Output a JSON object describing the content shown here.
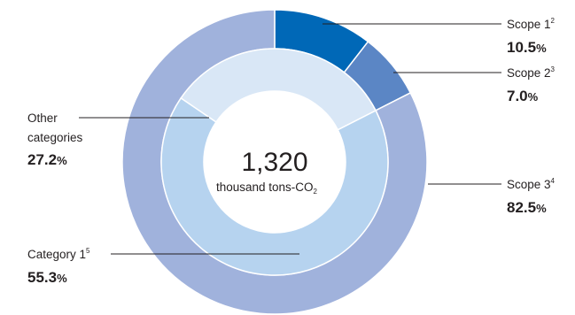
{
  "chart_data": {
    "type": "pie",
    "center": {
      "value": "1,320",
      "unit": "thousand tons-CO",
      "unit_sub": "2"
    },
    "outer_ring": [
      {
        "name": "Scope 1",
        "note": "2",
        "value": 10.5,
        "label": "10.5",
        "color": "#0068b7"
      },
      {
        "name": "Scope 2",
        "note": "3",
        "value": 7.0,
        "label": "7.0",
        "color": "#5b86c5"
      },
      {
        "name": "Scope 3",
        "note": "4",
        "value": 82.5,
        "label": "82.5",
        "color": "#a0b2dc"
      }
    ],
    "inner_ring": [
      {
        "name": "Category 1",
        "note": "5",
        "value": 55.3,
        "label": "55.3",
        "color": "#b6d3ef"
      },
      {
        "name": "Other categories",
        "name_lines": [
          "Other",
          "categories"
        ],
        "value": 27.2,
        "label": "27.2",
        "color": "#d9e7f6"
      }
    ],
    "percent_sign": "%"
  }
}
